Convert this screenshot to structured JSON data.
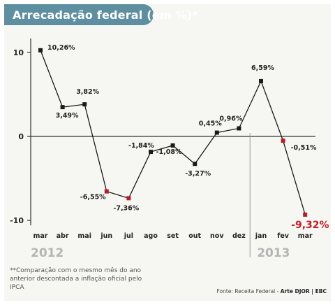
{
  "title": "Arrecadação federal (em %)*",
  "footnote": "**Comparação com o mesmo mês do ano anterior descontada a inflação oficial pelo IPCA",
  "source": {
    "prefix": "Fonte: Receita Federal - ",
    "credit": "Arte DJOR | EBC"
  },
  "colors": {
    "header": "#5d8fa0",
    "line": "#1a1a1a",
    "marker_2012": "#1a1a1a",
    "marker_2013": "#b3202a",
    "highlight": "#c0202a"
  },
  "chart_data": {
    "type": "line",
    "title": "Arrecadação federal (em %)*",
    "xlabel": "",
    "ylabel": "",
    "categories": [
      "mar",
      "abr",
      "mai",
      "jun",
      "jul",
      "ago",
      "set",
      "out",
      "nov",
      "dez",
      "jan",
      "fev",
      "mar"
    ],
    "years": [
      {
        "label": "2012",
        "from": 0,
        "to": 9
      },
      {
        "label": "2013",
        "from": 10,
        "to": 12
      }
    ],
    "series": [
      {
        "values": [
          10.26,
          3.49,
          3.82,
          -6.55,
          -7.36,
          -1.84,
          -1.08,
          -3.27,
          0.45,
          0.96,
          6.59,
          -0.51,
          -9.32
        ],
        "labels": [
          "10,26%",
          "3,49%",
          "3,82%",
          "-6,55%",
          "-7,36%",
          "-1,84%",
          "-1,08%",
          "-3,27%",
          "0,45%",
          "0,96%",
          "6,59%",
          "-0,51%",
          "-9,32%"
        ]
      }
    ],
    "yticks": [
      10,
      0,
      -10
    ],
    "ylim": [
      -10,
      10
    ],
    "grid": false,
    "legend": "none"
  }
}
